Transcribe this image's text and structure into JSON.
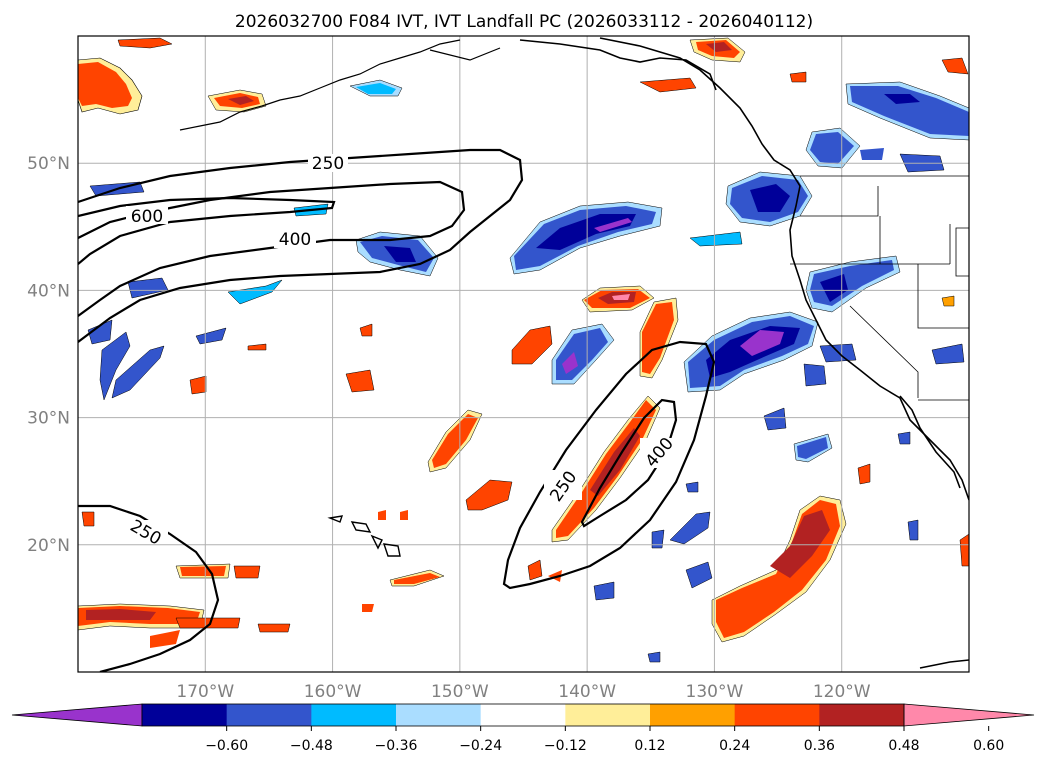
{
  "title": "2026032700 F084 IVT, IVT Landfall PC (2026033112 - 2026040112)",
  "axes": {
    "lat_labels": [
      "50°N",
      "40°N",
      "30°N",
      "20°N"
    ],
    "lon_labels": [
      "170°W",
      "160°W",
      "150°W",
      "140°W",
      "130°W",
      "120°W"
    ],
    "lat_values": [
      50,
      40,
      30,
      20
    ],
    "lon_values": [
      -170,
      -160,
      -150,
      -140,
      -130,
      -120
    ],
    "lon_range": [
      -180,
      -110
    ],
    "lat_range": [
      10,
      60
    ],
    "grid": true
  },
  "contour_labels": [
    "250",
    "600",
    "400",
    "250",
    "400",
    "250"
  ],
  "colorbar": {
    "tick_labels": [
      "−0.60",
      "−0.48",
      "−0.36",
      "−0.24",
      "−0.12",
      "0.12",
      "0.24",
      "0.36",
      "0.48",
      "0.60"
    ],
    "bins": [
      {
        "color": "#9933cc"
      },
      {
        "color": "#000099"
      },
      {
        "color": "#3355cc"
      },
      {
        "color": "#00bbff"
      },
      {
        "color": "#aaddff"
      },
      {
        "color": "#ffffff"
      },
      {
        "color": "#ffee99"
      },
      {
        "color": "#ffa000"
      },
      {
        "color": "#ff4400"
      },
      {
        "color": "#b22222"
      },
      {
        "color": "#ff88aa"
      }
    ]
  },
  "colors": {
    "purple": "#9933cc",
    "navy": "#000099",
    "blue": "#3355cc",
    "cyan": "#00bbff",
    "lightblue": "#aaddff",
    "yellow": "#ffee99",
    "orange": "#ffa000",
    "redorange": "#ff4400",
    "darkred": "#b22222",
    "pink": "#ff88aa",
    "grid": "#b0b0b0",
    "axis_label": "#808080"
  }
}
